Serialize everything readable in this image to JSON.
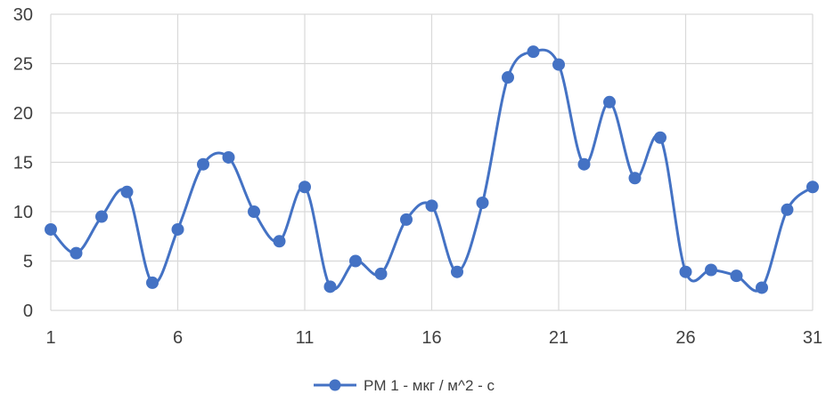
{
  "chart_data": {
    "type": "line",
    "title": "",
    "xlabel": "",
    "ylabel": "",
    "x": [
      1,
      2,
      3,
      4,
      5,
      6,
      7,
      8,
      9,
      10,
      11,
      12,
      13,
      14,
      15,
      16,
      17,
      18,
      19,
      20,
      21,
      22,
      23,
      24,
      25,
      26,
      27,
      28,
      29,
      30,
      31
    ],
    "series": [
      {
        "name": "PM 1 - мкг / м^2 - с",
        "values": [
          8.2,
          5.8,
          9.5,
          12.0,
          2.8,
          8.2,
          14.8,
          15.5,
          10.0,
          7.0,
          12.5,
          2.4,
          5.0,
          3.7,
          9.2,
          10.6,
          3.9,
          10.9,
          23.6,
          26.2,
          24.9,
          14.8,
          21.1,
          13.4,
          17.5,
          3.9,
          4.1,
          3.5,
          2.3,
          10.2,
          12.5
        ]
      }
    ],
    "xticks": [
      "1",
      "6",
      "11",
      "16",
      "21",
      "26",
      "31"
    ],
    "yticks": [
      "0",
      "5",
      "10",
      "15",
      "20",
      "25",
      "30"
    ],
    "xlim": [
      1,
      31
    ],
    "ylim": [
      0,
      30
    ],
    "grid": true,
    "legend": "bottom",
    "colors": {
      "series": "#4472C4",
      "grid": "#D9D9D9",
      "text": "#404040"
    }
  }
}
